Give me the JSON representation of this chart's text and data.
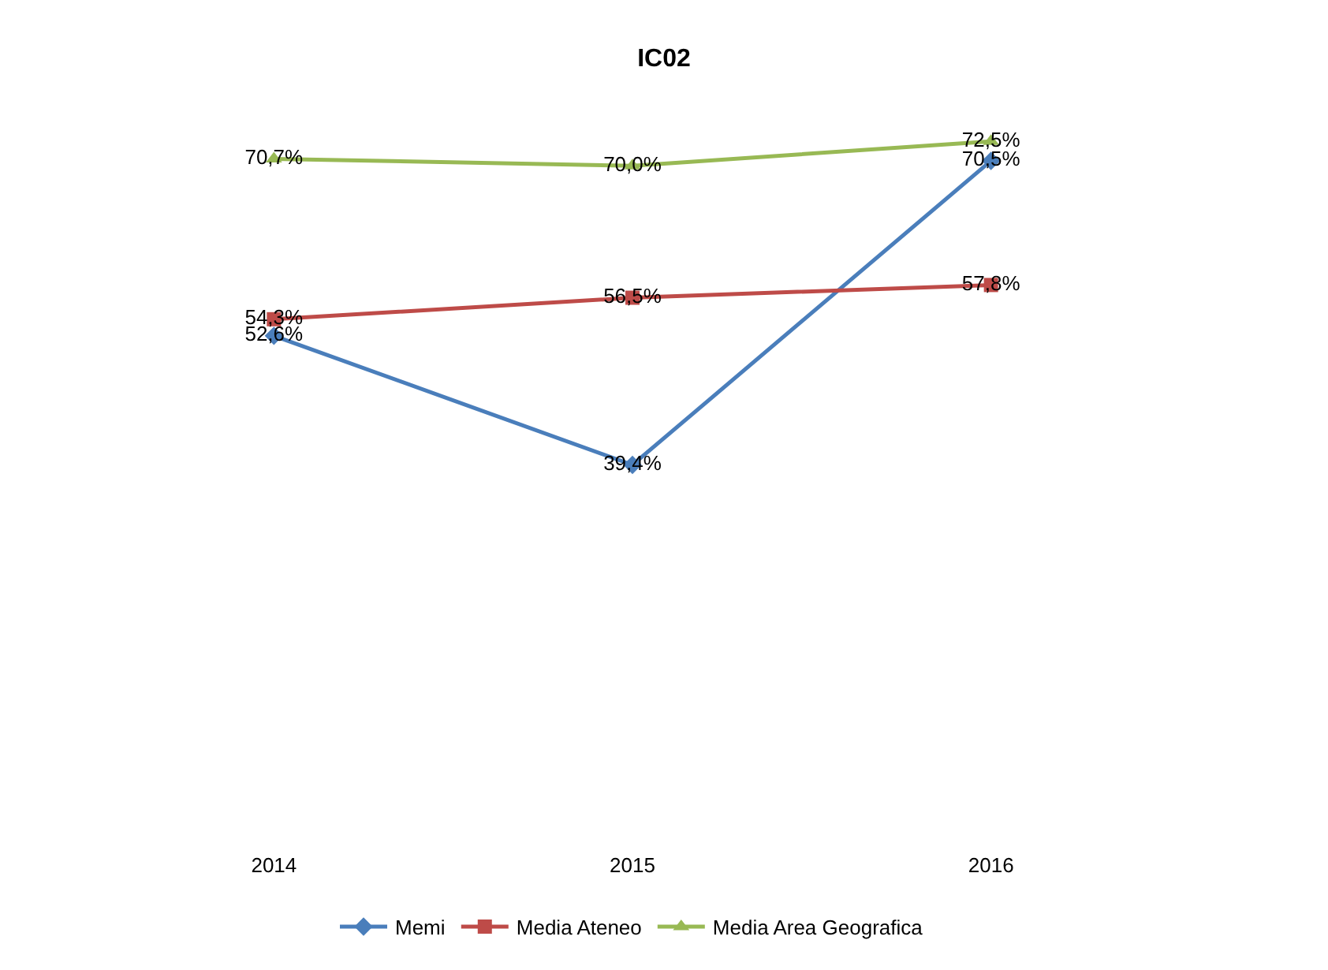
{
  "chart_data": {
    "type": "line",
    "title": "IC02",
    "categories": [
      "2014",
      "2015",
      "2016"
    ],
    "series": [
      {
        "name": "Memi",
        "color": "#4a7ebb",
        "marker": "diamond",
        "values": [
          52.6,
          39.4,
          70.5
        ],
        "value_labels": [
          "52,6%",
          "39,4%",
          "70,5%"
        ]
      },
      {
        "name": "Media Ateneo",
        "color": "#be4b48",
        "marker": "square",
        "values": [
          54.3,
          56.5,
          57.8
        ],
        "value_labels": [
          "54,3%",
          "56,5%",
          "57,8%"
        ]
      },
      {
        "name": "Media Area Geografica",
        "color": "#98b954",
        "marker": "triangle",
        "values": [
          70.7,
          70.0,
          72.5
        ],
        "value_labels": [
          "70,7%",
          "70,0%",
          "72,5%"
        ]
      }
    ],
    "tick_labels": "x",
    "legend": "bottom"
  }
}
